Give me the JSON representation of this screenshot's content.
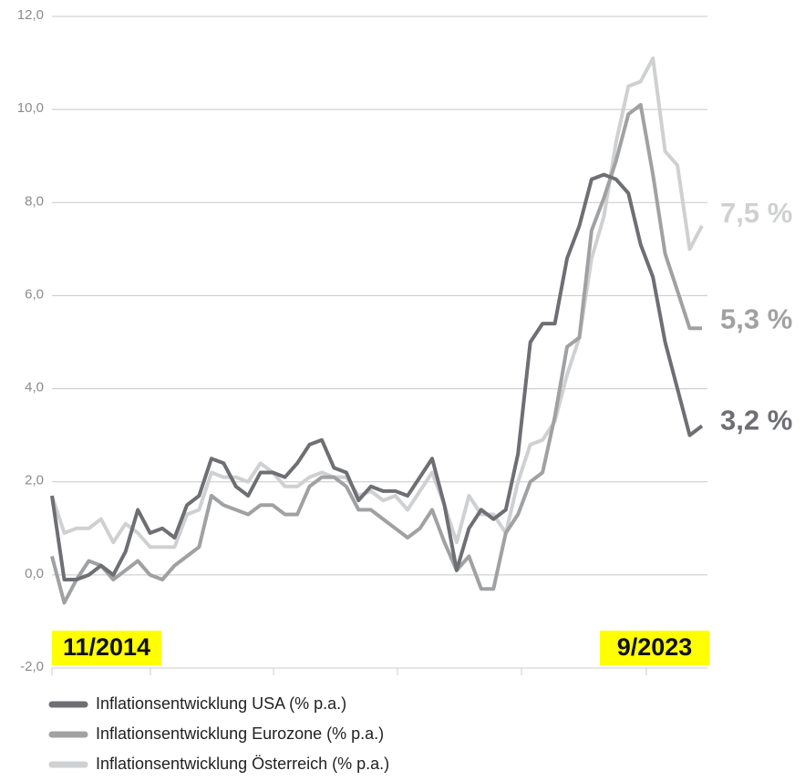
{
  "chart_data": {
    "type": "line",
    "categories": [
      "11/2014",
      null,
      null,
      null,
      null,
      null,
      null,
      null,
      null,
      null,
      null,
      null,
      null,
      null,
      null,
      null,
      null,
      null,
      null,
      null,
      null,
      null,
      null,
      null,
      null,
      null,
      null,
      null,
      null,
      null,
      null,
      null,
      null,
      null,
      null,
      null,
      null,
      null,
      null,
      null,
      null,
      null,
      null,
      null,
      null,
      null,
      null,
      null,
      null,
      null,
      null,
      null,
      null,
      "9/2023"
    ],
    "series": [
      {
        "name": "Inflationsentwicklung USA (% p.a.)",
        "color": "#6e6f73",
        "end_label": "3,2 %",
        "values": [
          1.7,
          -0.1,
          -0.1,
          0,
          0.2,
          0,
          0.5,
          1.4,
          0.9,
          1.0,
          0.8,
          1.5,
          1.7,
          2.5,
          2.4,
          1.9,
          1.7,
          2.2,
          2.2,
          2.1,
          2.4,
          2.8,
          2.9,
          2.3,
          2.2,
          1.6,
          1.9,
          1.8,
          1.8,
          1.7,
          2.1,
          2.5,
          1.5,
          0.1,
          1.0,
          1.4,
          1.2,
          1.4,
          2.6,
          5.0,
          5.4,
          5.4,
          6.8,
          7.5,
          8.5,
          8.6,
          8.5,
          8.2,
          7.1,
          6.4,
          5.0,
          4.0,
          3.0,
          3.2
        ]
      },
      {
        "name": "Inflationsentwicklung Eurozone (% p.a.)",
        "color": "#a0a1a3",
        "end_label": "5,3 %",
        "values": [
          0.4,
          -0.6,
          -0.1,
          0.3,
          0.2,
          -0.1,
          0.1,
          0.3,
          0,
          -0.1,
          0.2,
          0.4,
          0.6,
          1.7,
          1.5,
          1.4,
          1.3,
          1.5,
          1.5,
          1.3,
          1.3,
          1.9,
          2.1,
          2.1,
          1.9,
          1.4,
          1.4,
          1.2,
          1.0,
          0.8,
          1.0,
          1.4,
          0.7,
          0.1,
          0.4,
          -0.3,
          -0.3,
          0.9,
          1.3,
          2.0,
          2.2,
          3.4,
          4.9,
          5.1,
          7.4,
          8.1,
          8.9,
          9.9,
          10.1,
          8.6,
          6.9,
          6.1,
          5.3,
          5.3
        ]
      },
      {
        "name": "Inflationsentwicklung Österreich (% p.a.)",
        "color": "#cfd0d1",
        "end_label": "7,5 %",
        "values": [
          1.7,
          0.9,
          1.0,
          1.0,
          1.2,
          0.7,
          1.1,
          0.9,
          0.6,
          0.6,
          0.6,
          1.3,
          1.4,
          2.2,
          2.1,
          2.1,
          2.0,
          2.4,
          2.2,
          1.9,
          1.9,
          2.1,
          2.2,
          2.1,
          2.1,
          1.7,
          1.8,
          1.6,
          1.7,
          1.4,
          1.8,
          2.2,
          1.5,
          0.7,
          1.7,
          1.3,
          1.3,
          0.9,
          2.0,
          2.8,
          2.9,
          3.3,
          4.3,
          5.1,
          6.8,
          7.7,
          9.3,
          10.5,
          10.6,
          11.1,
          9.1,
          8.8,
          7.0,
          7.5
        ]
      }
    ],
    "ylim": [
      -2,
      12
    ],
    "yticks": [
      {
        "value": -2,
        "label": "-2,0"
      },
      {
        "value": 0,
        "label": "0,0"
      },
      {
        "value": 2,
        "label": "2,0"
      },
      {
        "value": 4,
        "label": "4,0"
      },
      {
        "value": 6,
        "label": "6,0"
      },
      {
        "value": 8,
        "label": "8,0"
      },
      {
        "value": 10,
        "label": "10,0"
      },
      {
        "value": 12,
        "label": "12,0"
      }
    ],
    "grid": true
  }
}
